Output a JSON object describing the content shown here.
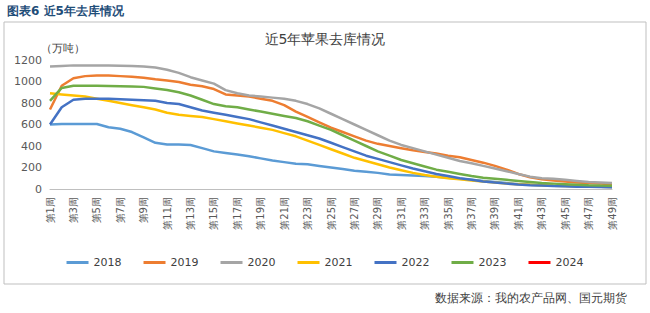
{
  "chart_data": {
    "type": "line",
    "caption": "图表6 近5年去库情况",
    "title": "近5年苹果去库情况",
    "y_label": "（万吨）",
    "source": "数据来源：我的农产品网、国元期货",
    "categories": [
      "第1周",
      null,
      "第3周",
      null,
      "第5周",
      null,
      "第7周",
      null,
      "第9周",
      null,
      "第11周",
      null,
      "第13周",
      null,
      "第15周",
      null,
      "第17周",
      null,
      "第19周",
      null,
      "第21周",
      null,
      "第23周",
      null,
      "第25周",
      null,
      "第27周",
      null,
      "第29周",
      null,
      "第31周",
      null,
      "第33周",
      null,
      "第35周",
      null,
      "第37周",
      null,
      "第39周",
      null,
      "第41周",
      null,
      "第43周",
      null,
      "第45周",
      null,
      "第47周",
      null,
      "第49周"
    ],
    "series": [
      {
        "name": "2018",
        "color": "#5b9bd5",
        "values": [
          600,
          605,
          605,
          605,
          605,
          575,
          560,
          530,
          480,
          430,
          415,
          415,
          410,
          380,
          350,
          335,
          320,
          305,
          285,
          265,
          250,
          235,
          230,
          215,
          200,
          185,
          170,
          160,
          150,
          135,
          130,
          125,
          120,
          115,
          105,
          95,
          85,
          75,
          65,
          55,
          45,
          40,
          35,
          30,
          27,
          25,
          22,
          20,
          18
        ]
      },
      {
        "name": "2019",
        "color": "#ed7d31",
        "values": [
          740,
          960,
          1030,
          1050,
          1055,
          1055,
          1050,
          1045,
          1035,
          1020,
          1010,
          995,
          970,
          955,
          930,
          880,
          870,
          860,
          840,
          820,
          780,
          720,
          670,
          620,
          570,
          530,
          490,
          450,
          420,
          400,
          380,
          360,
          345,
          330,
          310,
          295,
          270,
          245,
          215,
          180,
          140,
          110,
          90,
          80,
          70,
          60,
          55,
          50,
          45
        ]
      },
      {
        "name": "2020",
        "color": "#a5a5a5",
        "values": [
          1140,
          1145,
          1150,
          1150,
          1150,
          1148,
          1146,
          1144,
          1140,
          1130,
          1110,
          1080,
          1040,
          1010,
          980,
          920,
          890,
          870,
          860,
          850,
          840,
          820,
          790,
          750,
          700,
          650,
          600,
          550,
          500,
          450,
          410,
          380,
          350,
          320,
          290,
          260,
          240,
          215,
          190,
          165,
          140,
          115,
          100,
          95,
          85,
          75,
          65,
          60,
          55
        ]
      },
      {
        "name": "2021",
        "color": "#ffc000",
        "values": [
          890,
          880,
          870,
          860,
          840,
          820,
          800,
          780,
          760,
          740,
          710,
          690,
          680,
          670,
          650,
          630,
          610,
          590,
          570,
          550,
          520,
          490,
          450,
          410,
          370,
          330,
          290,
          260,
          230,
          200,
          175,
          150,
          130,
          115,
          100,
          90,
          80,
          70,
          60,
          50,
          45,
          40,
          35,
          30,
          28,
          25,
          22,
          20,
          18
        ]
      },
      {
        "name": "2022",
        "color": "#4472c4",
        "values": [
          600,
          760,
          830,
          840,
          840,
          840,
          835,
          830,
          825,
          820,
          800,
          790,
          760,
          730,
          710,
          690,
          670,
          650,
          620,
          590,
          560,
          530,
          500,
          470,
          430,
          390,
          350,
          310,
          280,
          250,
          220,
          190,
          165,
          140,
          120,
          100,
          85,
          70,
          60,
          50,
          42,
          36,
          32,
          28,
          25,
          22,
          20,
          18,
          16
        ]
      },
      {
        "name": "2023",
        "color": "#70ad47",
        "values": [
          820,
          940,
          960,
          960,
          960,
          958,
          956,
          954,
          950,
          935,
          920,
          900,
          870,
          830,
          790,
          770,
          760,
          740,
          720,
          700,
          680,
          660,
          630,
          590,
          550,
          500,
          450,
          400,
          350,
          310,
          270,
          240,
          210,
          180,
          160,
          140,
          120,
          105,
          95,
          85,
          75,
          65,
          55,
          50,
          45,
          40,
          35,
          32,
          30
        ]
      },
      {
        "name": "2024",
        "color": "#ff0000",
        "values": [
          null,
          null,
          null,
          null,
          null,
          null,
          null,
          null,
          null,
          null,
          null,
          null,
          null,
          null,
          null,
          null,
          null,
          null,
          null,
          null,
          null,
          null,
          null,
          null,
          null,
          null,
          null,
          null,
          null,
          null,
          null,
          null,
          null,
          null,
          null,
          null,
          null,
          null,
          null,
          null,
          null,
          null,
          null,
          null,
          null,
          null,
          null,
          null,
          null
        ]
      }
    ],
    "ylim": [
      0,
      1200
    ],
    "yticks": [
      0,
      200,
      400,
      600,
      800,
      1000,
      1200
    ],
    "grid": false,
    "legend": "bottom"
  }
}
